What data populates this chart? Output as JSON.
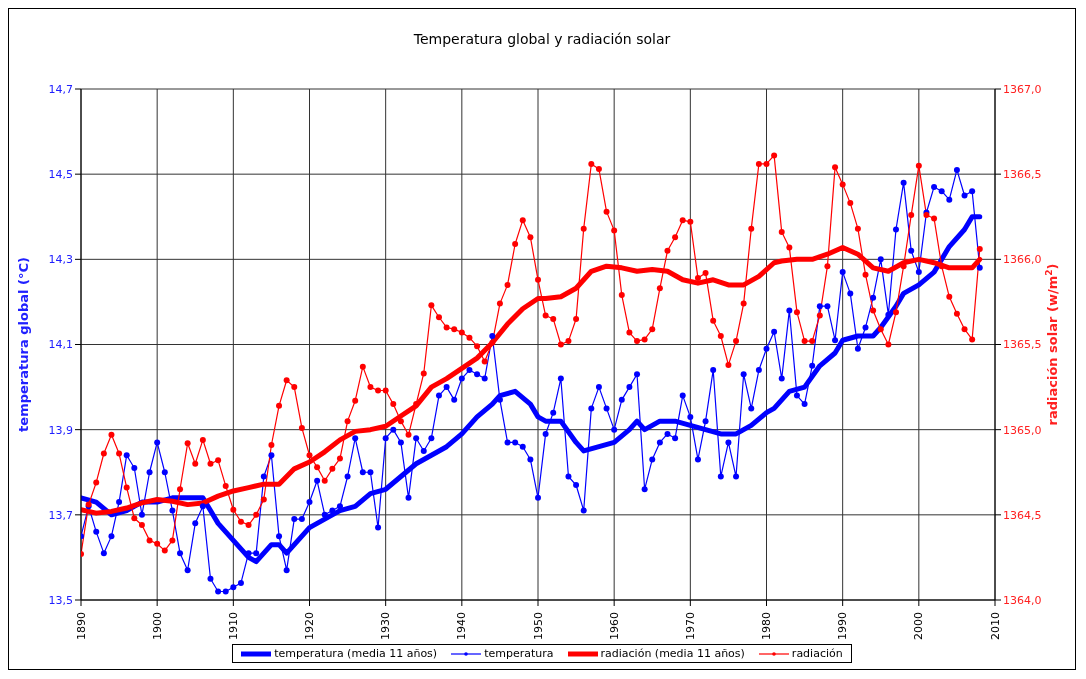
{
  "chart_data": {
    "type": "line",
    "title": "Temperatura global y radiación solar",
    "ylabel": "temperatura global (°C)",
    "y2label": "radiación solar (w/m$^{2}$)",
    "x": [
      1890,
      1891,
      1892,
      1893,
      1894,
      1895,
      1896,
      1897,
      1898,
      1899,
      1900,
      1901,
      1902,
      1903,
      1904,
      1905,
      1906,
      1907,
      1908,
      1909,
      1910,
      1911,
      1912,
      1913,
      1914,
      1915,
      1916,
      1917,
      1918,
      1919,
      1920,
      1921,
      1922,
      1923,
      1924,
      1925,
      1926,
      1927,
      1928,
      1929,
      1930,
      1931,
      1932,
      1933,
      1934,
      1935,
      1936,
      1937,
      1938,
      1939,
      1940,
      1941,
      1942,
      1943,
      1944,
      1945,
      1946,
      1947,
      1948,
      1949,
      1950,
      1951,
      1952,
      1953,
      1954,
      1955,
      1956,
      1957,
      1958,
      1959,
      1960,
      1961,
      1962,
      1963,
      1964,
      1965,
      1966,
      1967,
      1968,
      1969,
      1970,
      1971,
      1972,
      1973,
      1974,
      1975,
      1976,
      1977,
      1978,
      1979,
      1980,
      1981,
      1982,
      1983,
      1984,
      1985,
      1986,
      1987,
      1988,
      1989,
      1990,
      1991,
      1992,
      1993,
      1994,
      1995,
      1996,
      1997,
      1998,
      1999,
      2000,
      2001,
      2002,
      2003,
      2004,
      2005,
      2006,
      2007,
      2008
    ],
    "series": [
      {
        "name": "temperatura (media 11 años)",
        "color": "#0000ff",
        "marker": "none",
        "x": [
          1890,
          1892,
          1894,
          1896,
          1898,
          1900,
          1902,
          1904,
          1906,
          1907,
          1908,
          1910,
          1912,
          1913,
          1915,
          1916,
          1917,
          1919,
          1920,
          1922,
          1924,
          1926,
          1928,
          1930,
          1932,
          1934,
          1936,
          1938,
          1940,
          1942,
          1944,
          1945,
          1947,
          1949,
          1950,
          1951,
          1953,
          1955,
          1956,
          1958,
          1960,
          1962,
          1963,
          1964,
          1966,
          1968,
          1970,
          1972,
          1974,
          1976,
          1978,
          1980,
          1981,
          1983,
          1985,
          1987,
          1989,
          1990,
          1992,
          1994,
          1995,
          1997,
          1998,
          2000,
          2002,
          2004,
          2006,
          2007,
          2008
        ],
        "values": [
          13.74,
          13.73,
          13.7,
          13.71,
          13.73,
          13.73,
          13.74,
          13.74,
          13.74,
          13.71,
          13.68,
          13.64,
          13.6,
          13.59,
          13.63,
          13.63,
          13.61,
          13.65,
          13.67,
          13.69,
          13.71,
          13.72,
          13.75,
          13.76,
          13.79,
          13.82,
          13.84,
          13.86,
          13.89,
          13.93,
          13.96,
          13.98,
          13.99,
          13.96,
          13.93,
          13.92,
          13.92,
          13.87,
          13.85,
          13.86,
          13.87,
          13.9,
          13.92,
          13.9,
          13.92,
          13.92,
          13.91,
          13.9,
          13.89,
          13.89,
          13.91,
          13.94,
          13.95,
          13.99,
          14.0,
          14.05,
          14.08,
          14.11,
          14.12,
          14.12,
          14.14,
          14.19,
          14.22,
          14.24,
          14.27,
          14.33,
          14.37,
          14.4,
          14.4
        ]
      },
      {
        "name": "temperatura",
        "color": "#0000ff",
        "marker": "circle",
        "values": [
          13.65,
          13.72,
          13.66,
          13.61,
          13.65,
          13.73,
          13.84,
          13.81,
          13.7,
          13.8,
          13.87,
          13.8,
          13.71,
          13.61,
          13.57,
          13.68,
          13.72,
          13.55,
          13.52,
          13.52,
          13.53,
          13.54,
          13.61,
          13.61,
          13.79,
          13.84,
          13.65,
          13.57,
          13.69,
          13.69,
          13.73,
          13.78,
          13.7,
          13.71,
          13.72,
          13.79,
          13.88,
          13.8,
          13.8,
          13.67,
          13.88,
          13.9,
          13.87,
          13.74,
          13.88,
          13.85,
          13.88,
          13.98,
          14.0,
          13.97,
          14.02,
          14.04,
          14.03,
          14.02,
          14.12,
          13.97,
          13.87,
          13.87,
          13.86,
          13.83,
          13.74,
          13.89,
          13.94,
          14.02,
          13.79,
          13.77,
          13.71,
          13.95,
          14.0,
          13.95,
          13.9,
          13.97,
          14.0,
          14.03,
          13.76,
          13.83,
          13.87,
          13.89,
          13.88,
          13.98,
          13.93,
          13.83,
          13.92,
          14.04,
          13.79,
          13.87,
          13.79,
          14.03,
          13.95,
          14.04,
          14.09,
          14.13,
          14.02,
          14.18,
          13.98,
          13.96,
          14.05,
          14.19,
          14.19,
          14.11,
          14.27,
          14.22,
          14.09,
          14.14,
          14.21,
          14.3,
          14.17,
          14.37,
          14.48,
          14.32,
          14.27,
          14.41,
          14.47,
          14.46,
          14.44,
          14.51,
          14.45,
          14.46,
          14.28
        ]
      },
      {
        "name": "radiación (media 11 años)",
        "color": "#ff0000",
        "marker": "none",
        "axis": "y2",
        "x": [
          1890,
          1892,
          1894,
          1896,
          1898,
          1900,
          1902,
          1904,
          1906,
          1908,
          1910,
          1912,
          1914,
          1916,
          1918,
          1920,
          1922,
          1924,
          1926,
          1928,
          1930,
          1932,
          1934,
          1936,
          1938,
          1940,
          1942,
          1944,
          1946,
          1948,
          1950,
          1951,
          1953,
          1955,
          1957,
          1959,
          1961,
          1963,
          1965,
          1967,
          1969,
          1971,
          1973,
          1975,
          1977,
          1979,
          1981,
          1982,
          1984,
          1986,
          1988,
          1990,
          1992,
          1994,
          1996,
          1998,
          2000,
          2002,
          2004,
          2006,
          2007,
          2008
        ],
        "values": [
          1364.53,
          1364.51,
          1364.52,
          1364.54,
          1364.57,
          1364.59,
          1364.58,
          1364.56,
          1364.57,
          1364.61,
          1364.64,
          1364.66,
          1364.68,
          1364.68,
          1364.77,
          1364.81,
          1364.87,
          1364.94,
          1364.99,
          1365.0,
          1365.02,
          1365.08,
          1365.14,
          1365.25,
          1365.3,
          1365.36,
          1365.42,
          1365.51,
          1365.62,
          1365.71,
          1365.77,
          1365.77,
          1365.78,
          1365.83,
          1365.93,
          1365.96,
          1365.95,
          1365.93,
          1365.94,
          1365.93,
          1365.88,
          1365.86,
          1365.88,
          1365.85,
          1365.85,
          1365.9,
          1365.98,
          1365.99,
          1366.0,
          1366.0,
          1366.03,
          1366.07,
          1366.03,
          1365.95,
          1365.93,
          1365.98,
          1366.0,
          1365.98,
          1365.95,
          1365.95,
          1365.95,
          1366.0
        ]
      },
      {
        "name": "radiación",
        "color": "#ff0000",
        "marker": "circle",
        "axis": "y2",
        "values": [
          1364.27,
          1364.56,
          1364.69,
          1364.86,
          1364.97,
          1364.86,
          1364.66,
          1364.48,
          1364.44,
          1364.35,
          1364.33,
          1364.29,
          1364.35,
          1364.65,
          1364.92,
          1364.8,
          1364.94,
          1364.8,
          1364.82,
          1364.67,
          1364.53,
          1364.46,
          1364.44,
          1364.5,
          1364.59,
          1364.91,
          1365.14,
          1365.29,
          1365.25,
          1365.01,
          1364.85,
          1364.78,
          1364.7,
          1364.77,
          1364.83,
          1365.05,
          1365.17,
          1365.37,
          1365.25,
          1365.23,
          1365.23,
          1365.15,
          1365.05,
          1364.97,
          1365.15,
          1365.33,
          1365.73,
          1365.66,
          1365.6,
          1365.59,
          1365.57,
          1365.54,
          1365.49,
          1365.4,
          1365.51,
          1365.74,
          1365.85,
          1366.09,
          1366.23,
          1366.13,
          1365.88,
          1365.67,
          1365.65,
          1365.5,
          1365.52,
          1365.65,
          1366.18,
          1366.56,
          1366.53,
          1366.28,
          1366.17,
          1365.79,
          1365.57,
          1365.52,
          1365.53,
          1365.59,
          1365.83,
          1366.05,
          1366.13,
          1366.23,
          1366.22,
          1365.89,
          1365.92,
          1365.64,
          1365.55,
          1365.38,
          1365.52,
          1365.74,
          1366.18,
          1366.56,
          1366.56,
          1366.61,
          1366.16,
          1366.07,
          1365.69,
          1365.52,
          1365.52,
          1365.67,
          1365.96,
          1366.54,
          1366.44,
          1366.33,
          1366.18,
          1365.91,
          1365.7,
          1365.59,
          1365.5,
          1365.69,
          1365.96,
          1366.26,
          1366.55,
          1366.26,
          1366.24,
          1365.96,
          1365.78,
          1365.68,
          1365.59,
          1365.53,
          1366.06
        ]
      }
    ],
    "xlim": [
      1890,
      2010
    ],
    "xticks": [
      1890,
      1900,
      1910,
      1920,
      1930,
      1940,
      1950,
      1960,
      1970,
      1980,
      1990,
      2000,
      2010
    ],
    "ylim": [
      13.5,
      14.7
    ],
    "yticks": [
      {
        "value": 13.5,
        "label": "13,5"
      },
      {
        "value": 13.7,
        "label": "13,7"
      },
      {
        "value": 13.9,
        "label": "13,9"
      },
      {
        "value": 14.1,
        "label": "14,1"
      },
      {
        "value": 14.3,
        "label": "14,3"
      },
      {
        "value": 14.5,
        "label": "14,5"
      },
      {
        "value": 14.7,
        "label": "14,7"
      }
    ],
    "y2lim": [
      1364,
      1367
    ],
    "y2ticks": [
      {
        "value": 1364,
        "label": "1364,0"
      },
      {
        "value": 1364.5,
        "label": "1364,5"
      },
      {
        "value": 1365,
        "label": "1365,0"
      },
      {
        "value": 1365.5,
        "label": "1365,5"
      },
      {
        "value": 1366,
        "label": "1366,0"
      },
      {
        "value": 1366.5,
        "label": "1366,5"
      },
      {
        "value": 1367,
        "label": "1367,0"
      }
    ],
    "grid": true,
    "legend": "bottom",
    "line_style": "solid"
  }
}
